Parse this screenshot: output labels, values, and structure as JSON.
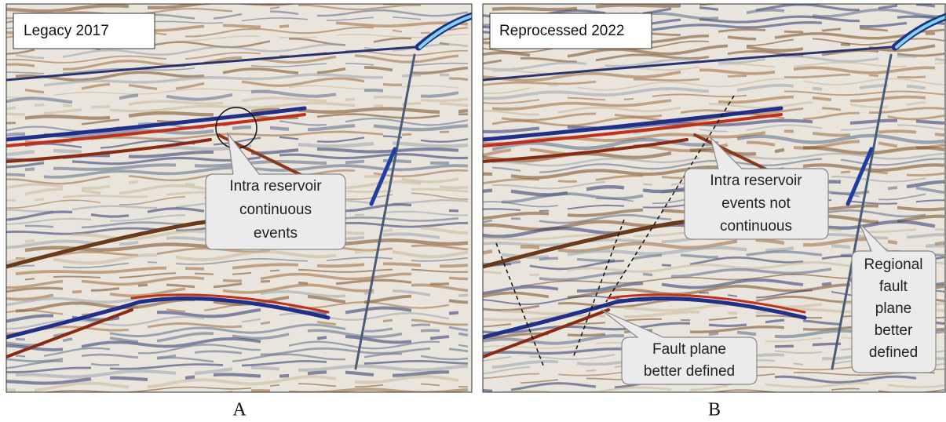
{
  "panels": [
    {
      "title": "Legacy 2017",
      "letter": "A",
      "callouts": [
        {
          "lines": [
            "Intra reservoir",
            "continuous",
            "events"
          ]
        }
      ]
    },
    {
      "title": "Reprocessed 2022",
      "letter": "B",
      "callouts": [
        {
          "lines": [
            "Intra reservoir",
            "events not",
            "continuous"
          ]
        },
        {
          "lines": [
            "Fault plane",
            "better defined"
          ]
        },
        {
          "lines": [
            "Regional",
            "fault",
            "plane",
            "better",
            "defined"
          ]
        }
      ]
    }
  ]
}
